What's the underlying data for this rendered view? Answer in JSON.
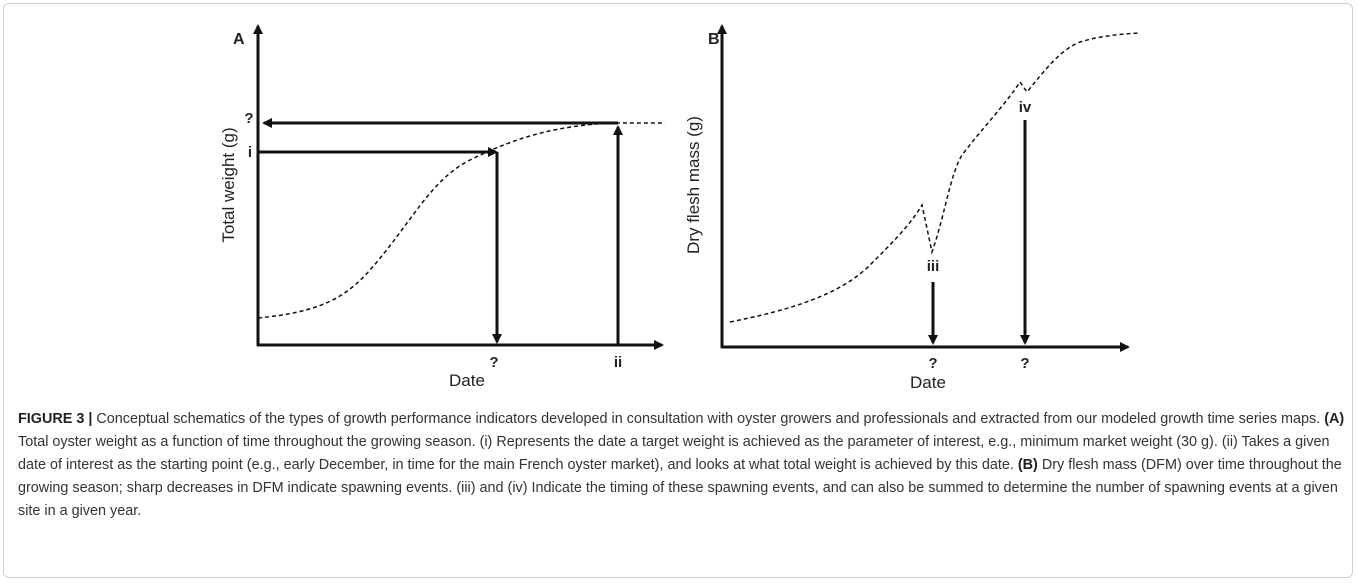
{
  "figure": {
    "panels": [
      {
        "label": "A",
        "y_axis_label": "Total weight (g)",
        "x_axis_label": "Date",
        "annotations": [
          "?",
          "i",
          "?",
          "ii"
        ]
      },
      {
        "label": "B",
        "y_axis_label": "Dry flesh mass (g)",
        "x_axis_label": "Date",
        "annotations": [
          "iii",
          "iv",
          "?",
          "?"
        ]
      }
    ],
    "caption": {
      "label": "FIGURE 3 |",
      "segments": [
        "Conceptual schematics of the types of growth performance indicators developed in consultation with oyster growers and professionals and extracted from our modeled growth time series maps.",
        "(A)",
        "Total oyster weight as a function of time throughout the growing season. (i) Represents the date a target weight is achieved as the parameter of interest, e.g., minimum market weight (30 g). (ii) Takes a given date of interest as the starting point (e.g., early December, in time for the main French oyster market), and looks at what total weight is achieved by this date.",
        "(B)",
        "Dry flesh mass (DFM) over time throughout the growing season; sharp decreases in DFM indicate spawning events. (iii) and (iv) Indicate the timing of these spawning events, and can also be summed to determine the number of spawning events at a given site in a given year."
      ]
    }
  }
}
